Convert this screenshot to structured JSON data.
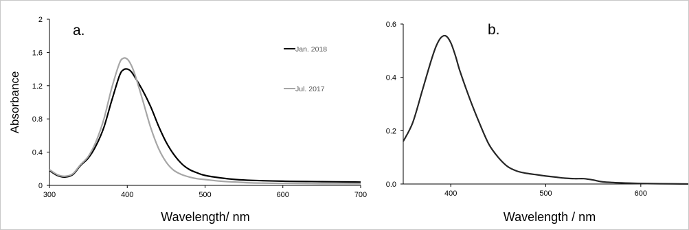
{
  "chart_data": [
    {
      "type": "line",
      "panel_label": "a.",
      "xlabel": "Wavelength/ nm",
      "ylabel": "Absorbance",
      "xlim": [
        300,
        700
      ],
      "ylim": [
        0,
        2
      ],
      "x_ticks": [
        "300",
        "400",
        "500",
        "600",
        "700"
      ],
      "y_ticks": [
        "0",
        "0.4",
        "0.8",
        "1.2",
        "1.6",
        "2"
      ],
      "legend_position": "top-right",
      "series": [
        {
          "name": "Jan. 2018",
          "color": "#000000",
          "x": [
            300,
            310,
            320,
            330,
            340,
            350,
            360,
            370,
            380,
            390,
            395,
            400,
            405,
            410,
            420,
            430,
            440,
            450,
            460,
            470,
            480,
            490,
            500,
            520,
            540,
            560,
            600,
            650,
            700
          ],
          "y": [
            0.18,
            0.12,
            0.1,
            0.13,
            0.24,
            0.33,
            0.48,
            0.7,
            1.02,
            1.32,
            1.39,
            1.4,
            1.37,
            1.3,
            1.14,
            0.95,
            0.72,
            0.52,
            0.37,
            0.26,
            0.19,
            0.15,
            0.12,
            0.09,
            0.07,
            0.06,
            0.05,
            0.045,
            0.04
          ]
        },
        {
          "name": "Jul. 2017",
          "color": "#a6a6a6",
          "x": [
            300,
            310,
            320,
            330,
            340,
            350,
            360,
            370,
            380,
            390,
            395,
            400,
            405,
            410,
            420,
            430,
            440,
            450,
            460,
            470,
            480,
            490,
            500,
            520,
            540,
            560,
            600,
            650,
            700
          ],
          "y": [
            0.19,
            0.13,
            0.11,
            0.14,
            0.25,
            0.35,
            0.53,
            0.8,
            1.17,
            1.47,
            1.53,
            1.52,
            1.45,
            1.33,
            1.02,
            0.7,
            0.45,
            0.28,
            0.18,
            0.13,
            0.1,
            0.08,
            0.07,
            0.05,
            0.04,
            0.03,
            0.025,
            0.02,
            0.02
          ]
        }
      ]
    },
    {
      "type": "line",
      "panel_label": "b.",
      "xlabel": "Wavelength / nm",
      "ylabel": "",
      "xlim": [
        350,
        650
      ],
      "ylim": [
        0,
        0.6
      ],
      "x_ticks": [
        "400",
        "500",
        "600"
      ],
      "y_ticks": [
        "0.0",
        "0.2",
        "0.4",
        "0.6"
      ],
      "series": [
        {
          "color": "#262626",
          "x": [
            350,
            360,
            370,
            380,
            385,
            390,
            395,
            400,
            405,
            410,
            420,
            430,
            440,
            450,
            460,
            470,
            480,
            490,
            500,
            510,
            520,
            530,
            540,
            550,
            560,
            580,
            600,
            620,
            650
          ],
          "y": [
            0.16,
            0.23,
            0.35,
            0.47,
            0.52,
            0.55,
            0.555,
            0.53,
            0.48,
            0.42,
            0.32,
            0.23,
            0.15,
            0.1,
            0.065,
            0.048,
            0.04,
            0.035,
            0.03,
            0.026,
            0.022,
            0.02,
            0.02,
            0.015,
            0.008,
            0.004,
            0.002,
            0.001,
            0.0
          ]
        }
      ]
    }
  ]
}
